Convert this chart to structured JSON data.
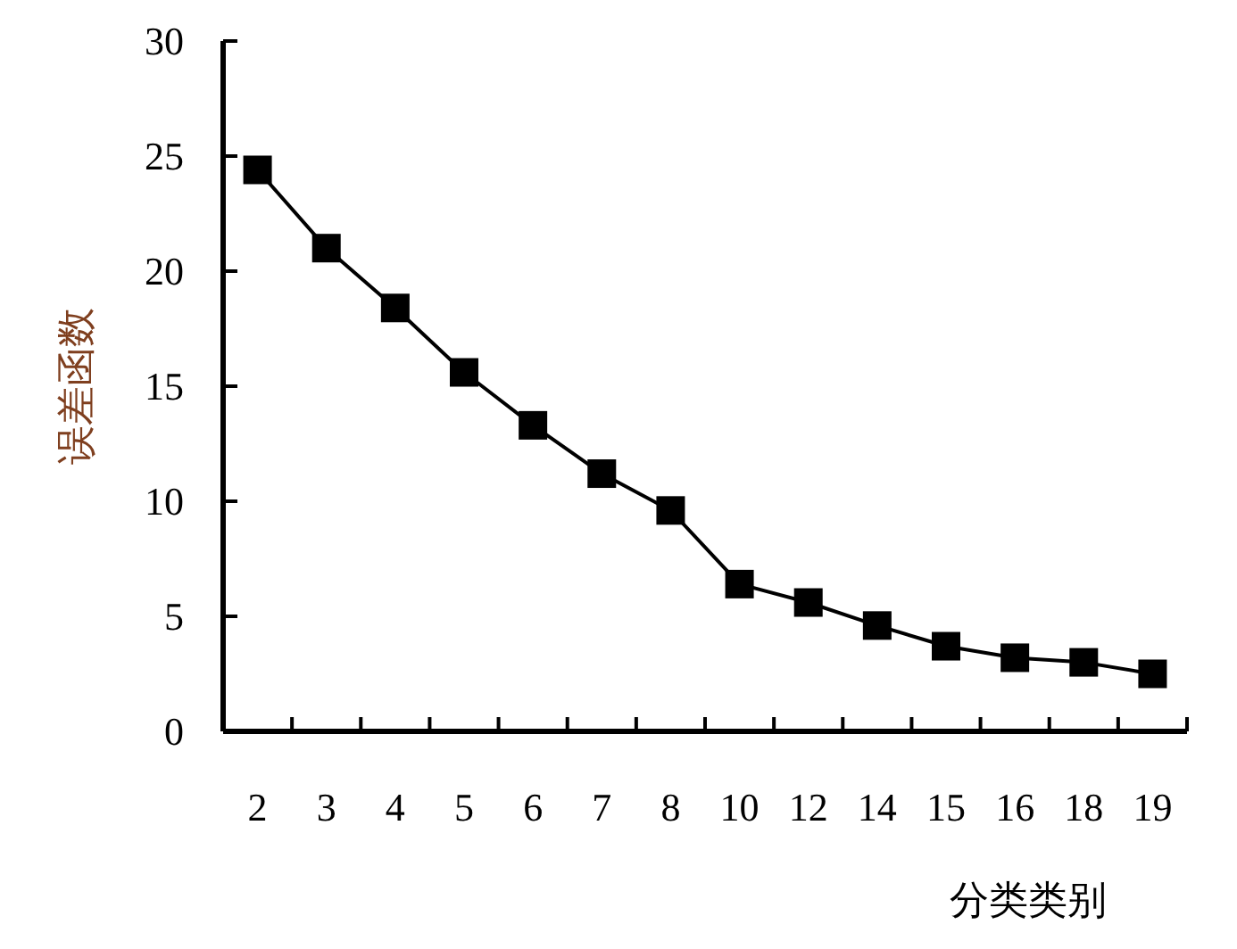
{
  "chart_data": {
    "type": "line",
    "xlabel": "分类类别",
    "ylabel": "误差函数",
    "categories": [
      "2",
      "3",
      "4",
      "5",
      "6",
      "7",
      "8",
      "10",
      "12",
      "14",
      "15",
      "16",
      "18",
      "19"
    ],
    "series": [
      {
        "color": "#000000",
        "values": [
          24.4,
          21.0,
          18.4,
          15.6,
          13.3,
          11.2,
          9.6,
          6.4,
          5.6,
          4.6,
          3.7,
          3.2,
          3.0,
          2.5
        ]
      }
    ],
    "ylim": [
      0,
      30
    ],
    "yticks": [
      0,
      5,
      10,
      15,
      20,
      25,
      30
    ],
    "marker": "square",
    "line_style": "solid"
  }
}
